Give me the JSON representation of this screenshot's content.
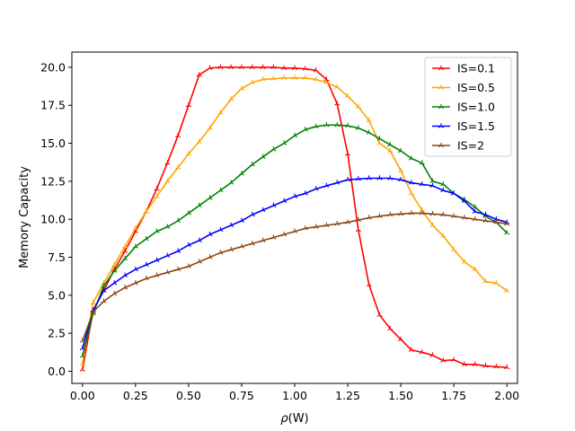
{
  "chart_data": {
    "type": "line",
    "title": "",
    "xlabel_prefix": "ρ",
    "xlabel_suffix": "(W)",
    "ylabel": "Memory Capacity",
    "xlim": [
      -0.05,
      2.05
    ],
    "ylim": [
      -0.8,
      21.0
    ],
    "xticks": [
      0.0,
      0.25,
      0.5,
      0.75,
      1.0,
      1.25,
      1.5,
      1.75,
      2.0
    ],
    "xtick_labels": [
      "0.00",
      "0.25",
      "0.50",
      "0.75",
      "1.00",
      "1.25",
      "1.50",
      "1.75",
      "2.00"
    ],
    "yticks": [
      0.0,
      2.5,
      5.0,
      7.5,
      10.0,
      12.5,
      15.0,
      17.5,
      20.0
    ],
    "ytick_labels": [
      "0.0",
      "2.5",
      "5.0",
      "7.5",
      "10.0",
      "12.5",
      "15.0",
      "17.5",
      "20.0"
    ],
    "grid": false,
    "legend_position": "top-right",
    "x": [
      0.0,
      0.05,
      0.1,
      0.15,
      0.2,
      0.25,
      0.3,
      0.35,
      0.4,
      0.45,
      0.5,
      0.55,
      0.6,
      0.65,
      0.7,
      0.75,
      0.8,
      0.85,
      0.9,
      0.95,
      1.0,
      1.05,
      1.1,
      1.15,
      1.2,
      1.25,
      1.3,
      1.35,
      1.4,
      1.45,
      1.5,
      1.55,
      1.6,
      1.65,
      1.7,
      1.75,
      1.8,
      1.85,
      1.9,
      1.95,
      2.0
    ],
    "series": [
      {
        "name": "IS=0.1",
        "color": "#ff0000",
        "values": [
          0.1,
          4.0,
          5.3,
          6.7,
          7.9,
          9.2,
          10.5,
          12.0,
          13.7,
          15.5,
          17.5,
          19.5,
          19.95,
          20.0,
          20.0,
          20.0,
          20.0,
          20.0,
          20.0,
          19.95,
          19.95,
          19.9,
          19.8,
          19.2,
          17.6,
          14.3,
          9.3,
          5.7,
          3.7,
          2.8,
          2.1,
          1.4,
          1.25,
          1.05,
          0.7,
          0.75,
          0.45,
          0.45,
          0.35,
          0.3,
          0.25
        ]
      },
      {
        "name": "IS=0.5",
        "color": "#ffa500",
        "values": [
          0.5,
          4.5,
          5.8,
          7.0,
          8.2,
          9.4,
          10.5,
          11.5,
          12.5,
          13.4,
          14.3,
          15.1,
          16.0,
          17.0,
          17.9,
          18.6,
          19.0,
          19.2,
          19.25,
          19.3,
          19.3,
          19.3,
          19.2,
          19.0,
          18.7,
          18.1,
          17.4,
          16.5,
          15.0,
          14.5,
          13.2,
          11.7,
          10.6,
          9.6,
          8.9,
          8.0,
          7.2,
          6.7,
          5.9,
          5.8,
          5.3
        ]
      },
      {
        "name": "IS=1.0",
        "color": "#008000",
        "values": [
          1.0,
          3.8,
          5.6,
          6.6,
          7.4,
          8.2,
          8.7,
          9.2,
          9.5,
          9.9,
          10.4,
          10.9,
          11.4,
          11.9,
          12.4,
          13.0,
          13.6,
          14.1,
          14.6,
          15.0,
          15.5,
          15.9,
          16.1,
          16.2,
          16.2,
          16.15,
          16.0,
          15.7,
          15.3,
          14.9,
          14.5,
          14.0,
          13.7,
          12.5,
          12.3,
          11.7,
          11.3,
          10.8,
          10.2,
          9.8,
          9.1
        ]
      },
      {
        "name": "IS=1.5",
        "color": "#0000ff",
        "values": [
          1.5,
          4.0,
          5.3,
          5.8,
          6.3,
          6.7,
          7.0,
          7.3,
          7.6,
          7.9,
          8.3,
          8.6,
          9.0,
          9.3,
          9.6,
          9.9,
          10.3,
          10.6,
          10.9,
          11.2,
          11.5,
          11.7,
          12.0,
          12.2,
          12.4,
          12.6,
          12.65,
          12.7,
          12.7,
          12.7,
          12.6,
          12.4,
          12.3,
          12.2,
          11.9,
          11.7,
          11.2,
          10.5,
          10.3,
          10.0,
          9.8
        ]
      },
      {
        "name": "IS=2",
        "color": "#8b4513",
        "values": [
          2.0,
          3.9,
          4.6,
          5.1,
          5.5,
          5.8,
          6.1,
          6.3,
          6.5,
          6.7,
          6.9,
          7.2,
          7.5,
          7.8,
          8.0,
          8.2,
          8.4,
          8.6,
          8.8,
          9.0,
          9.2,
          9.4,
          9.5,
          9.6,
          9.7,
          9.8,
          9.95,
          10.1,
          10.2,
          10.3,
          10.35,
          10.4,
          10.4,
          10.35,
          10.3,
          10.2,
          10.1,
          10.0,
          9.9,
          9.8,
          9.7
        ]
      }
    ]
  }
}
